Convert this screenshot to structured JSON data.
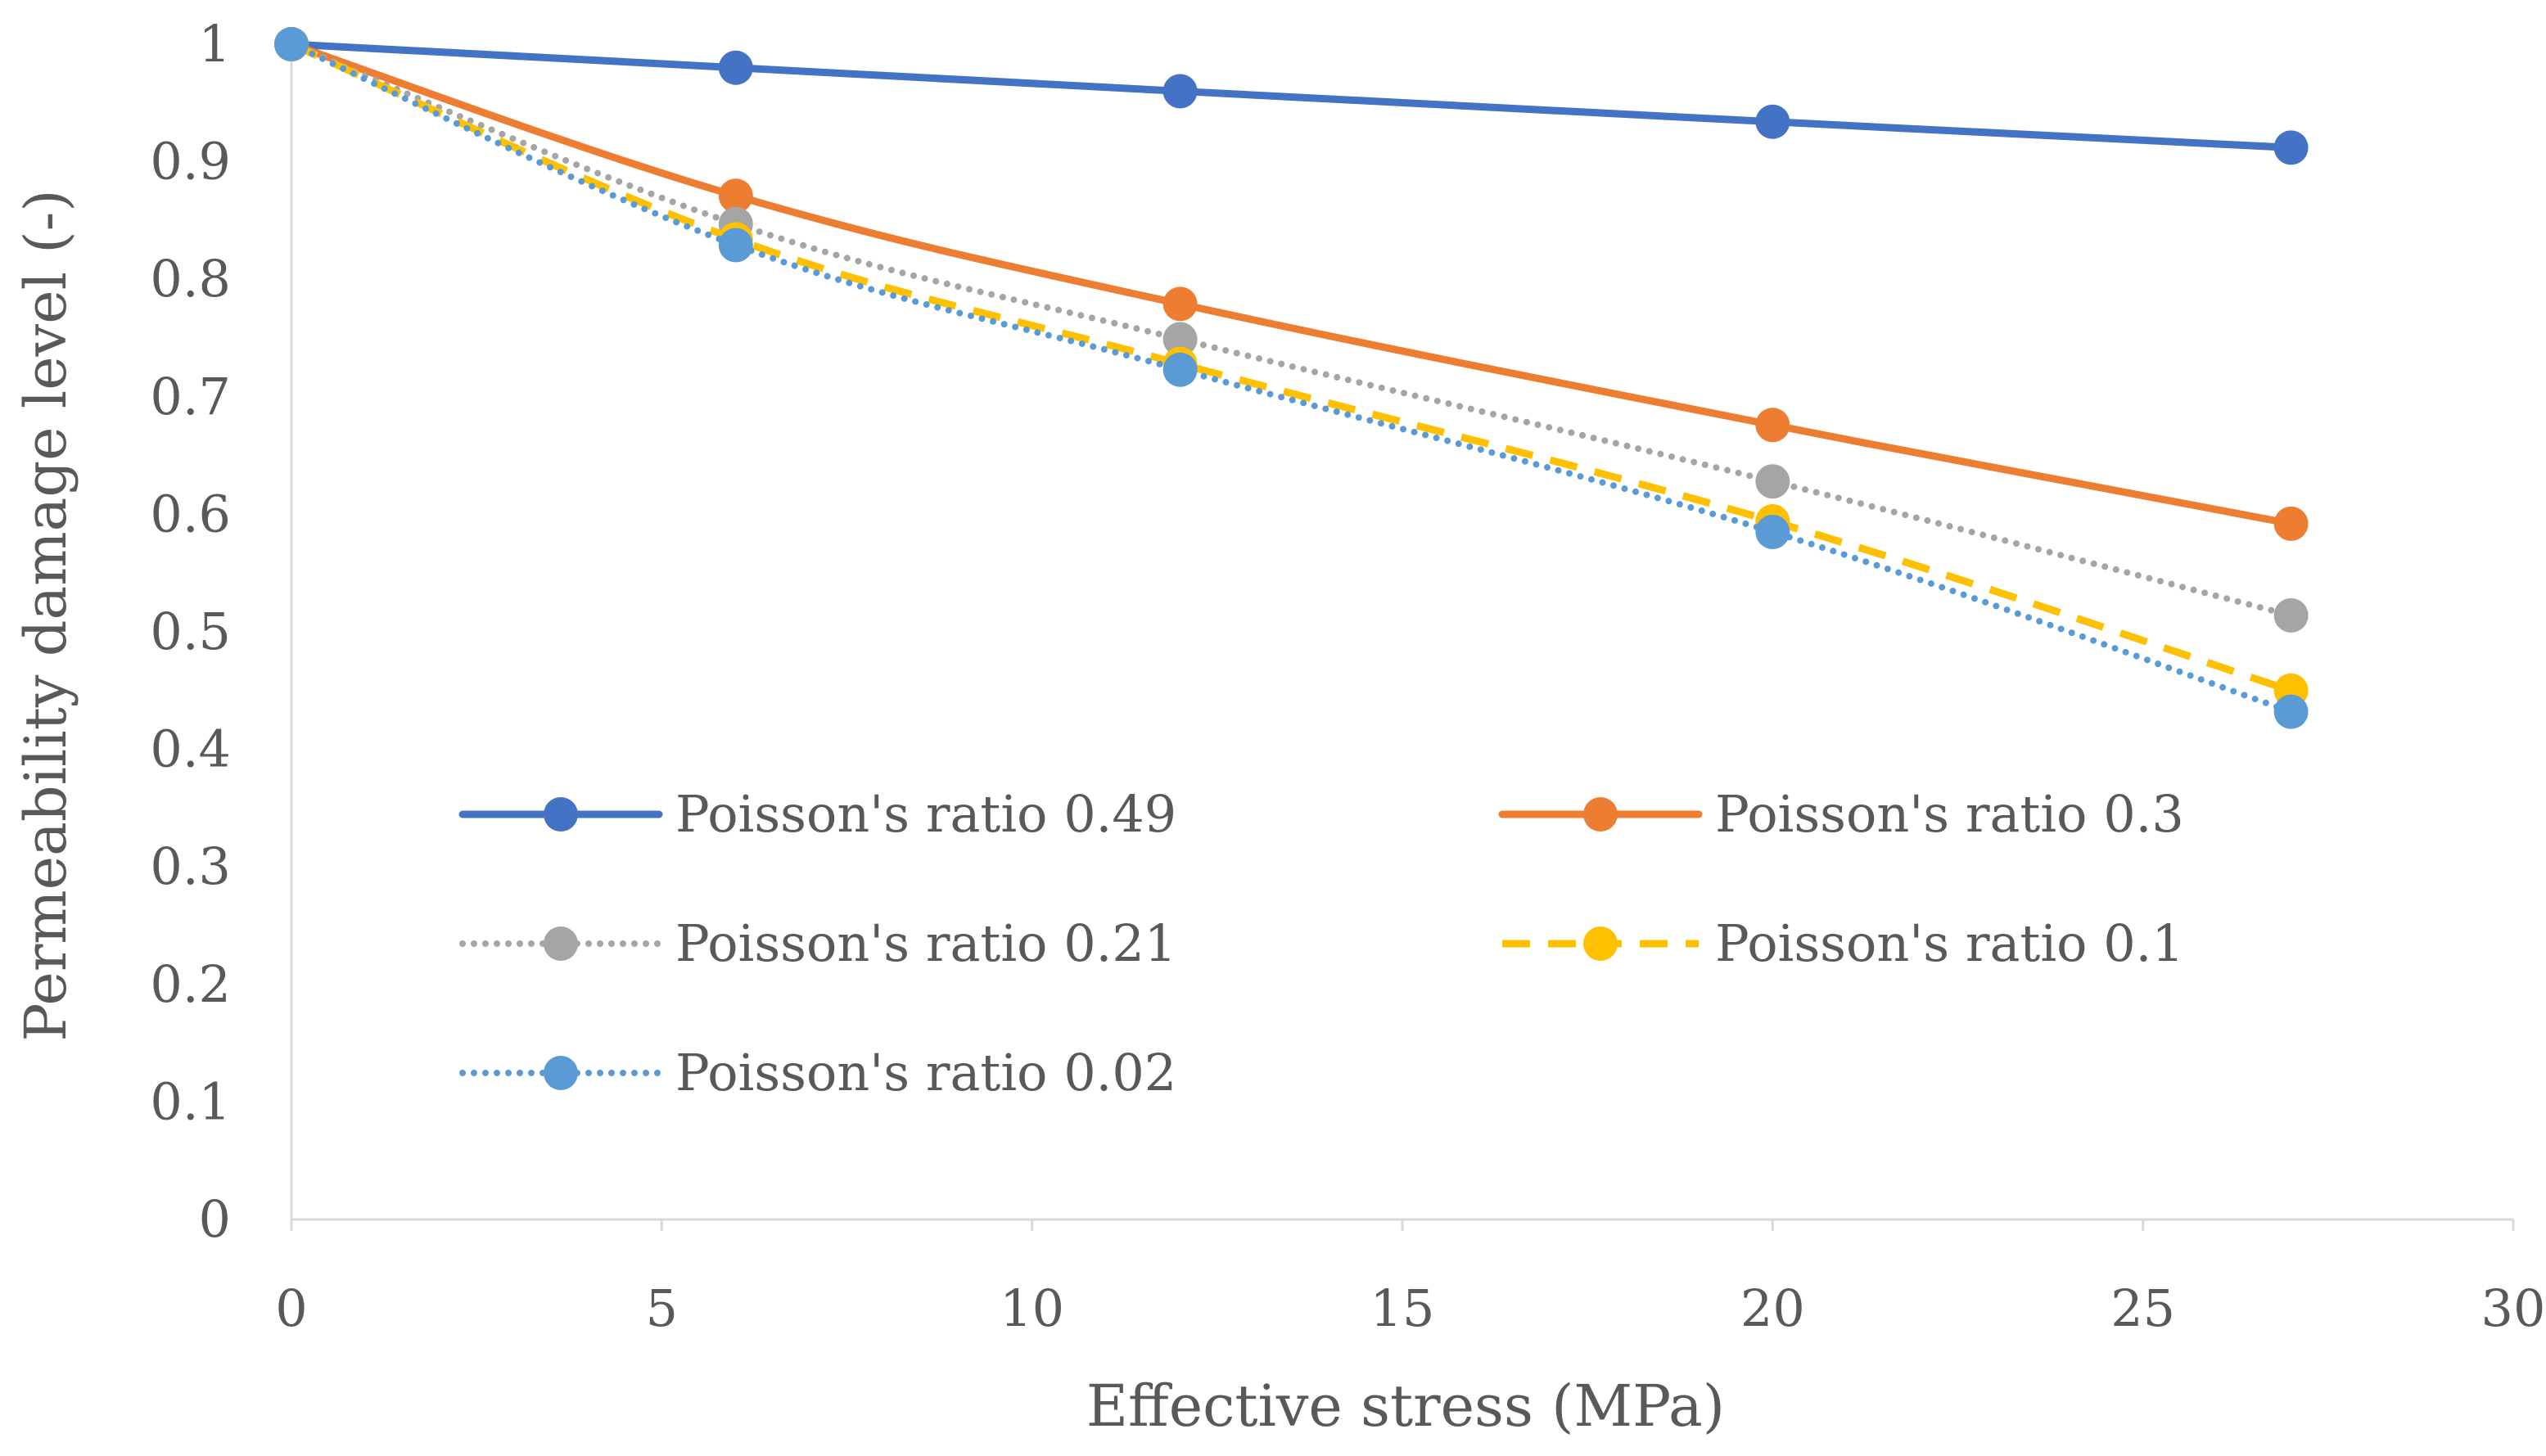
{
  "chart_data": {
    "type": "line",
    "title": "",
    "xlabel": "Effective stress (MPa)",
    "ylabel": "Permeability damage level (-)",
    "xlim": [
      0,
      30
    ],
    "ylim": [
      0,
      1
    ],
    "x_ticks": [
      0,
      5,
      10,
      15,
      20,
      25,
      30
    ],
    "y_ticks": [
      0,
      0.1,
      0.2,
      0.3,
      0.4,
      0.5,
      0.6,
      0.7,
      0.8,
      0.9,
      1
    ],
    "x": [
      0,
      6,
      12,
      20,
      27
    ],
    "grid": false,
    "legend_position": "inside-center",
    "series": [
      {
        "name": "Poisson's ratio 0.49",
        "values": [
          1,
          0.98,
          0.96,
          0.934,
          0.912
        ],
        "color": "#4472C4",
        "line_style": "solid"
      },
      {
        "name": "Poisson's ratio 0.3",
        "values": [
          1,
          0.871,
          0.779,
          0.676,
          0.592
        ],
        "color": "#ED7D31",
        "line_style": "solid"
      },
      {
        "name": "Poisson's ratio 0.21",
        "values": [
          1,
          0.847,
          0.749,
          0.628,
          0.514
        ],
        "color": "#A5A5A5",
        "line_style": "dotted"
      },
      {
        "name": "Poisson's ratio 0.1",
        "values": [
          1,
          0.834,
          0.728,
          0.594,
          0.45
        ],
        "color": "#FFC000",
        "line_style": "dashed"
      },
      {
        "name": "Poisson's ratio 0.02",
        "values": [
          1,
          0.829,
          0.723,
          0.585,
          0.432
        ],
        "color": "#5B9BD5",
        "line_style": "dotted"
      }
    ]
  }
}
